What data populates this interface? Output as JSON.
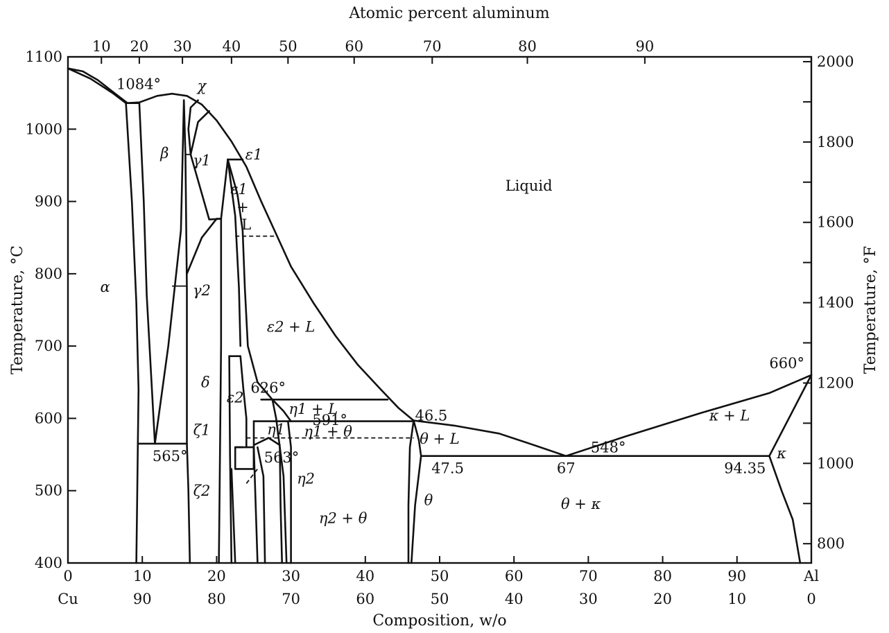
{
  "chart_data": {
    "type": "phase-diagram",
    "title": "",
    "top_axis": {
      "label": "Atomic percent aluminum",
      "ticks": [
        "10",
        "20",
        "30",
        "40",
        "50",
        "60",
        "70",
        "80",
        "90"
      ],
      "tick_wt": [
        4.5,
        9.6,
        15.4,
        22.0,
        29.6,
        38.5,
        49.0,
        61.8,
        77.6
      ]
    },
    "x_axis": {
      "label": "Composition, w/o",
      "range": [
        0,
        100
      ],
      "ticks": [
        0,
        10,
        20,
        30,
        40,
        50,
        60,
        70,
        80,
        90,
        100
      ],
      "tick_labels": [
        "0",
        "10",
        "20",
        "30",
        "40",
        "50",
        "60",
        "70",
        "80",
        "90",
        "Al"
      ],
      "second_row_labels": [
        "Cu",
        "90",
        "80",
        "70",
        "60",
        "50",
        "40",
        "30",
        "20",
        "10",
        "0"
      ]
    },
    "y_axis_left": {
      "label": "Temperature, °C",
      "range": [
        400,
        1100
      ],
      "ticks": [
        400,
        500,
        600,
        700,
        800,
        900,
        1000,
        1100
      ]
    },
    "y_axis_right": {
      "label": "Temperature, °F",
      "ticks": [
        800,
        1000,
        1200,
        1400,
        1600,
        1800,
        2000
      ],
      "minor_every": 100
    },
    "liquidus": [
      [
        0,
        1084
      ],
      [
        2,
        1080
      ],
      [
        4,
        1068
      ],
      [
        6,
        1052
      ],
      [
        8,
        1036
      ],
      [
        9.6,
        1037
      ],
      [
        12,
        1046
      ],
      [
        14,
        1049
      ],
      [
        16,
        1046
      ],
      [
        18,
        1034
      ],
      [
        20,
        1012
      ],
      [
        22,
        983
      ],
      [
        24,
        948
      ],
      [
        26,
        900
      ],
      [
        28,
        855
      ],
      [
        30,
        810
      ],
      [
        33,
        760
      ],
      [
        36,
        714
      ],
      [
        39,
        674
      ],
      [
        42,
        641
      ],
      [
        44.5,
        614
      ],
      [
        46.5,
        597
      ],
      [
        52,
        590
      ],
      [
        58,
        579
      ],
      [
        63,
        562
      ],
      [
        67,
        548
      ],
      [
        75,
        575
      ],
      [
        85,
        607
      ],
      [
        94.35,
        635
      ],
      [
        100,
        660
      ]
    ],
    "eutectics": [
      {
        "label": "565°",
        "temperature": 565,
        "x_range": [
          10,
          16
        ]
      },
      {
        "label": "626°",
        "temperature": 626,
        "x_range": [
          26,
          43
        ]
      },
      {
        "label": "591°",
        "temperature": 591,
        "x_range": [
          24.5,
          46.5
        ]
      },
      {
        "label": "563°",
        "temperature": 563,
        "x_range": [
          25,
          46.5
        ]
      },
      {
        "label": "548°",
        "temperature": 548,
        "x_range": [
          47.5,
          94.35
        ]
      }
    ],
    "points": [
      {
        "label": "1084°",
        "x": 0,
        "y": 1084
      },
      {
        "label": "660°",
        "x": 100,
        "y": 660
      },
      {
        "label": "46.5",
        "x": 46.5,
        "y": 597
      },
      {
        "label": "47.5",
        "x": 47.5,
        "y": 548
      },
      {
        "label": "67",
        "x": 67,
        "y": 548
      },
      {
        "label": "94.35",
        "x": 94.35,
        "y": 548
      }
    ],
    "regions": [
      {
        "label": "Liquid",
        "x": 62,
        "y": 915
      },
      {
        "label": "α",
        "x": 5,
        "y": 775
      },
      {
        "label": "β",
        "x": 13,
        "y": 960
      },
      {
        "label": "χ",
        "x": 18,
        "y": 1053
      },
      {
        "label": "γ1",
        "x": 18,
        "y": 950
      },
      {
        "label": "ε1",
        "x": 25,
        "y": 958
      },
      {
        "label": "ε1",
        "x": 23,
        "y": 910
      },
      {
        "label": "+",
        "x": 23.5,
        "y": 885
      },
      {
        "label": "L",
        "x": 24,
        "y": 861
      },
      {
        "label": "γ2",
        "x": 18,
        "y": 770
      },
      {
        "label": "ε2 + L",
        "x": 30,
        "y": 720
      },
      {
        "label": "δ",
        "x": 18.5,
        "y": 643
      },
      {
        "label": "ε2",
        "x": 22.5,
        "y": 622
      },
      {
        "label": "η1 + L",
        "x": 33,
        "y": 606
      },
      {
        "label": "ζ1",
        "x": 18,
        "y": 577
      },
      {
        "label": "η1",
        "x": 28,
        "y": 578
      },
      {
        "label": "η1 + θ",
        "x": 35,
        "y": 575
      },
      {
        "label": "η2",
        "x": 32,
        "y": 510
      },
      {
        "label": "ζ2",
        "x": 18,
        "y": 493
      },
      {
        "label": "η2 + θ",
        "x": 37,
        "y": 455
      },
      {
        "label": "θ",
        "x": 48.5,
        "y": 480
      },
      {
        "label": "θ + L",
        "x": 50,
        "y": 565
      },
      {
        "label": "θ + κ",
        "x": 69,
        "y": 475
      },
      {
        "label": "κ + L",
        "x": 89,
        "y": 597
      },
      {
        "label": "κ",
        "x": 96,
        "y": 545
      }
    ]
  }
}
